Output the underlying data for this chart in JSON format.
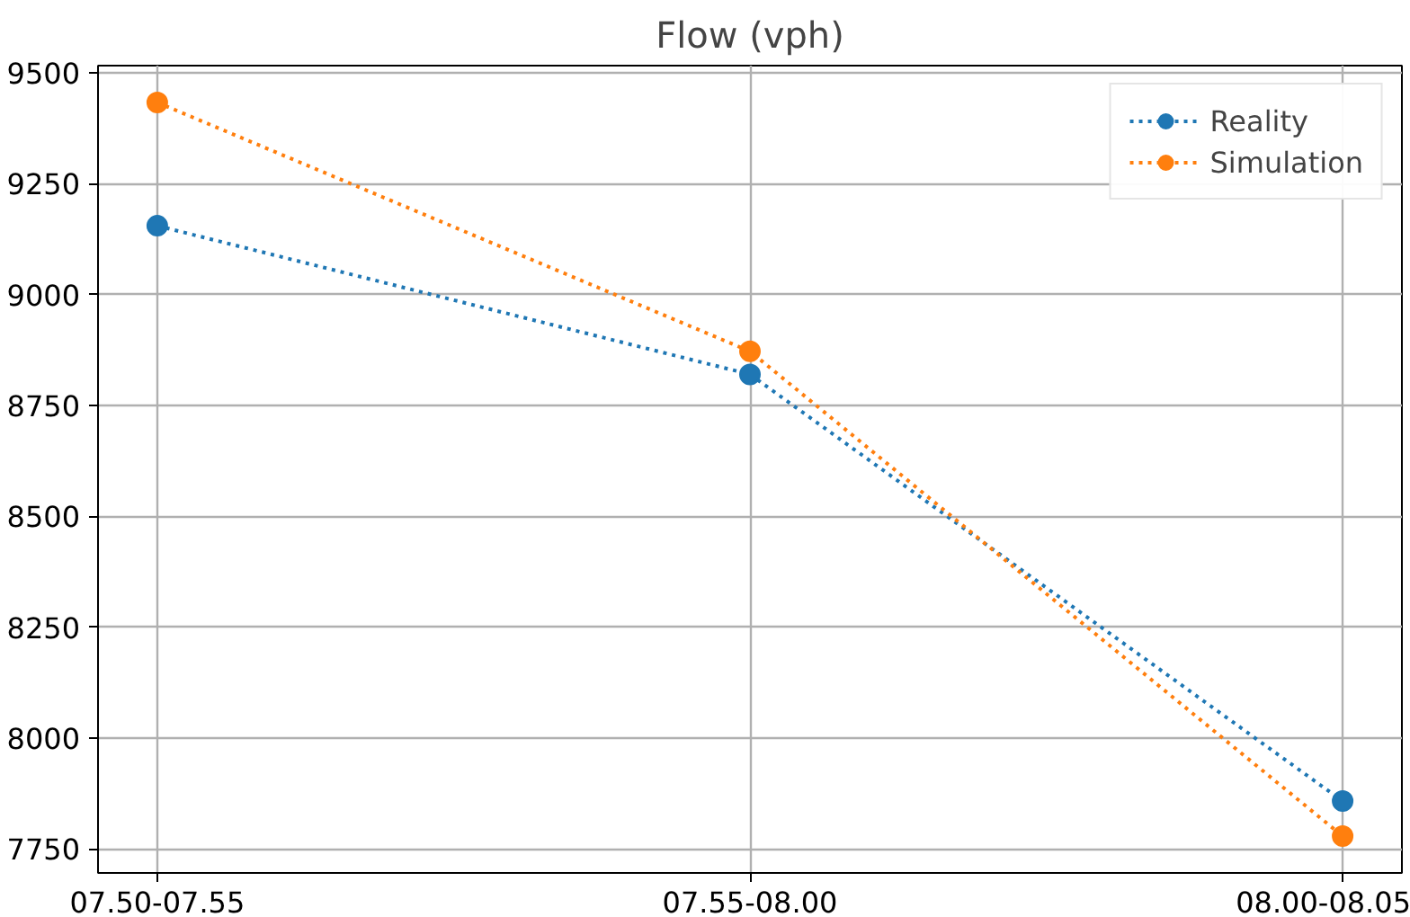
{
  "chart_data": {
    "type": "line",
    "title": "Flow (vph)",
    "categories": [
      "07.50-07.55",
      "07.55-08.00",
      "08.00-08.05"
    ],
    "series": [
      {
        "name": "Reality",
        "color": "#1f77b4",
        "values": [
          9155,
          8820,
          7858
        ]
      },
      {
        "name": "Simulation",
        "color": "#ff7f0e",
        "values": [
          9433,
          8872,
          7779
        ]
      }
    ],
    "ylim": [
      7696,
      9516
    ],
    "yticks": [
      7750,
      8000,
      8250,
      8500,
      8750,
      9000,
      9250,
      9500
    ],
    "grid": true,
    "legend": "top right",
    "marker": "circle",
    "line_style": "dotted"
  }
}
